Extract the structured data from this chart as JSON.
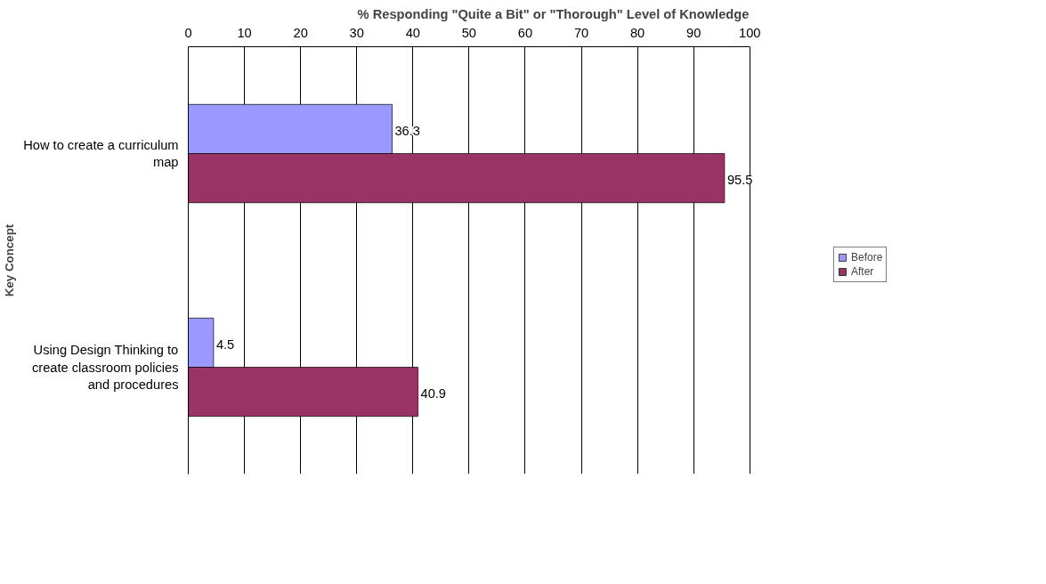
{
  "chart_data": {
    "type": "bar",
    "orientation": "horizontal",
    "title": "% Responding \"Quite a Bit\" or \"Thorough\" Level of Knowledge",
    "ylabel": "Key Concept",
    "categories": [
      "How to create a curriculum map",
      "Using Design Thinking to create classroom policies and procedures"
    ],
    "series": [
      {
        "name": "Before",
        "color": "#9999ff",
        "values": [
          36.3,
          4.5
        ]
      },
      {
        "name": "After",
        "color": "#993366",
        "values": [
          95.5,
          40.9
        ]
      }
    ],
    "xlim": [
      0,
      100
    ],
    "xticks": [
      0,
      10,
      20,
      30,
      40,
      50,
      60,
      70,
      80,
      90,
      100
    ],
    "grid": "x",
    "legend": "right",
    "data_labels": true
  }
}
